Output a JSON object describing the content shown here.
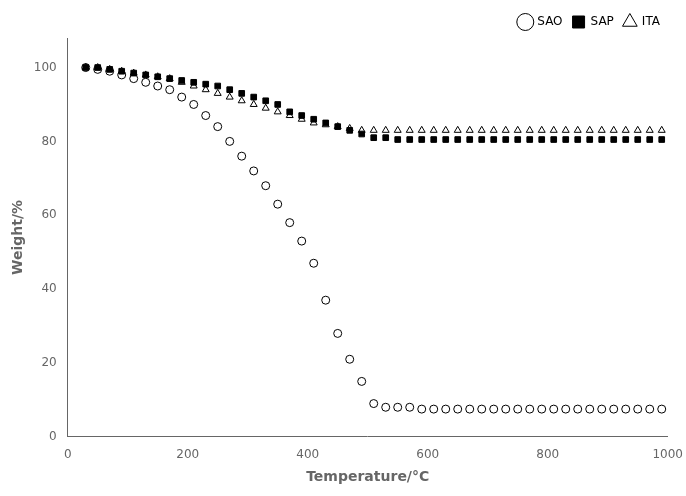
{
  "chart_data": {
    "type": "scatter",
    "xlabel": "Temperature/°C",
    "ylabel": "Weight/%",
    "xlim": [
      0,
      1000
    ],
    "ylim": [
      0,
      108
    ],
    "xticks": [
      0,
      200,
      400,
      600,
      800,
      1000
    ],
    "yticks": [
      0,
      20,
      40,
      60,
      80,
      100
    ],
    "grid": false,
    "legend": "upper right",
    "x": [
      30,
      50,
      70,
      90,
      110,
      130,
      150,
      170,
      190,
      210,
      230,
      250,
      270,
      290,
      310,
      330,
      350,
      370,
      390,
      410,
      430,
      450,
      470,
      490,
      510,
      530,
      550,
      570,
      590,
      610,
      630,
      650,
      670,
      690,
      710,
      730,
      750,
      770,
      790,
      810,
      830,
      850,
      870,
      890,
      910,
      930,
      950,
      970,
      990
    ],
    "series": [
      {
        "name": "SAO",
        "color": "#000000",
        "marker": "open_circle",
        "values": [
          100,
          99.5,
          99,
          98,
          97,
          96,
          95,
          94,
          92,
          90,
          87,
          84,
          80,
          76,
          72,
          68,
          63,
          58,
          53,
          47,
          37,
          28,
          21,
          15,
          9,
          8,
          8,
          8,
          7.5,
          7.5,
          7.5,
          7.5,
          7.5,
          7.5,
          7.5,
          7.5,
          7.5,
          7.5,
          7.5,
          7.5,
          7.5,
          7.5,
          7.5,
          7.5,
          7.5,
          7.5,
          7.5,
          7.5,
          7.5
        ]
      },
      {
        "name": "SAP",
        "color": "#000000",
        "marker": "filled_square",
        "values": [
          100,
          100,
          99.5,
          99,
          98.5,
          98,
          97.5,
          97,
          96.5,
          96,
          95.5,
          95,
          94,
          93,
          92,
          91,
          90,
          88,
          87,
          86,
          85,
          84,
          83,
          82,
          81,
          81,
          80.5,
          80.5,
          80.5,
          80.5,
          80.5,
          80.5,
          80.5,
          80.5,
          80.5,
          80.5,
          80.5,
          80.5,
          80.5,
          80.5,
          80.5,
          80.5,
          80.5,
          80.5,
          80.5,
          80.5,
          80.5,
          80.5,
          80.5
        ]
      },
      {
        "name": "ITA",
        "color": "#000000",
        "marker": "open_triangle",
        "values": [
          100,
          100,
          99.5,
          99,
          98.5,
          98,
          97.5,
          97,
          96,
          95,
          94,
          93,
          92,
          91,
          90,
          89,
          88,
          87,
          86,
          85,
          84.5,
          84,
          83.5,
          83,
          83,
          83,
          83,
          83,
          83,
          83,
          83,
          83,
          83,
          83,
          83,
          83,
          83,
          83,
          83,
          83,
          83,
          83,
          83,
          83,
          83,
          83,
          83,
          83,
          83
        ]
      }
    ]
  }
}
